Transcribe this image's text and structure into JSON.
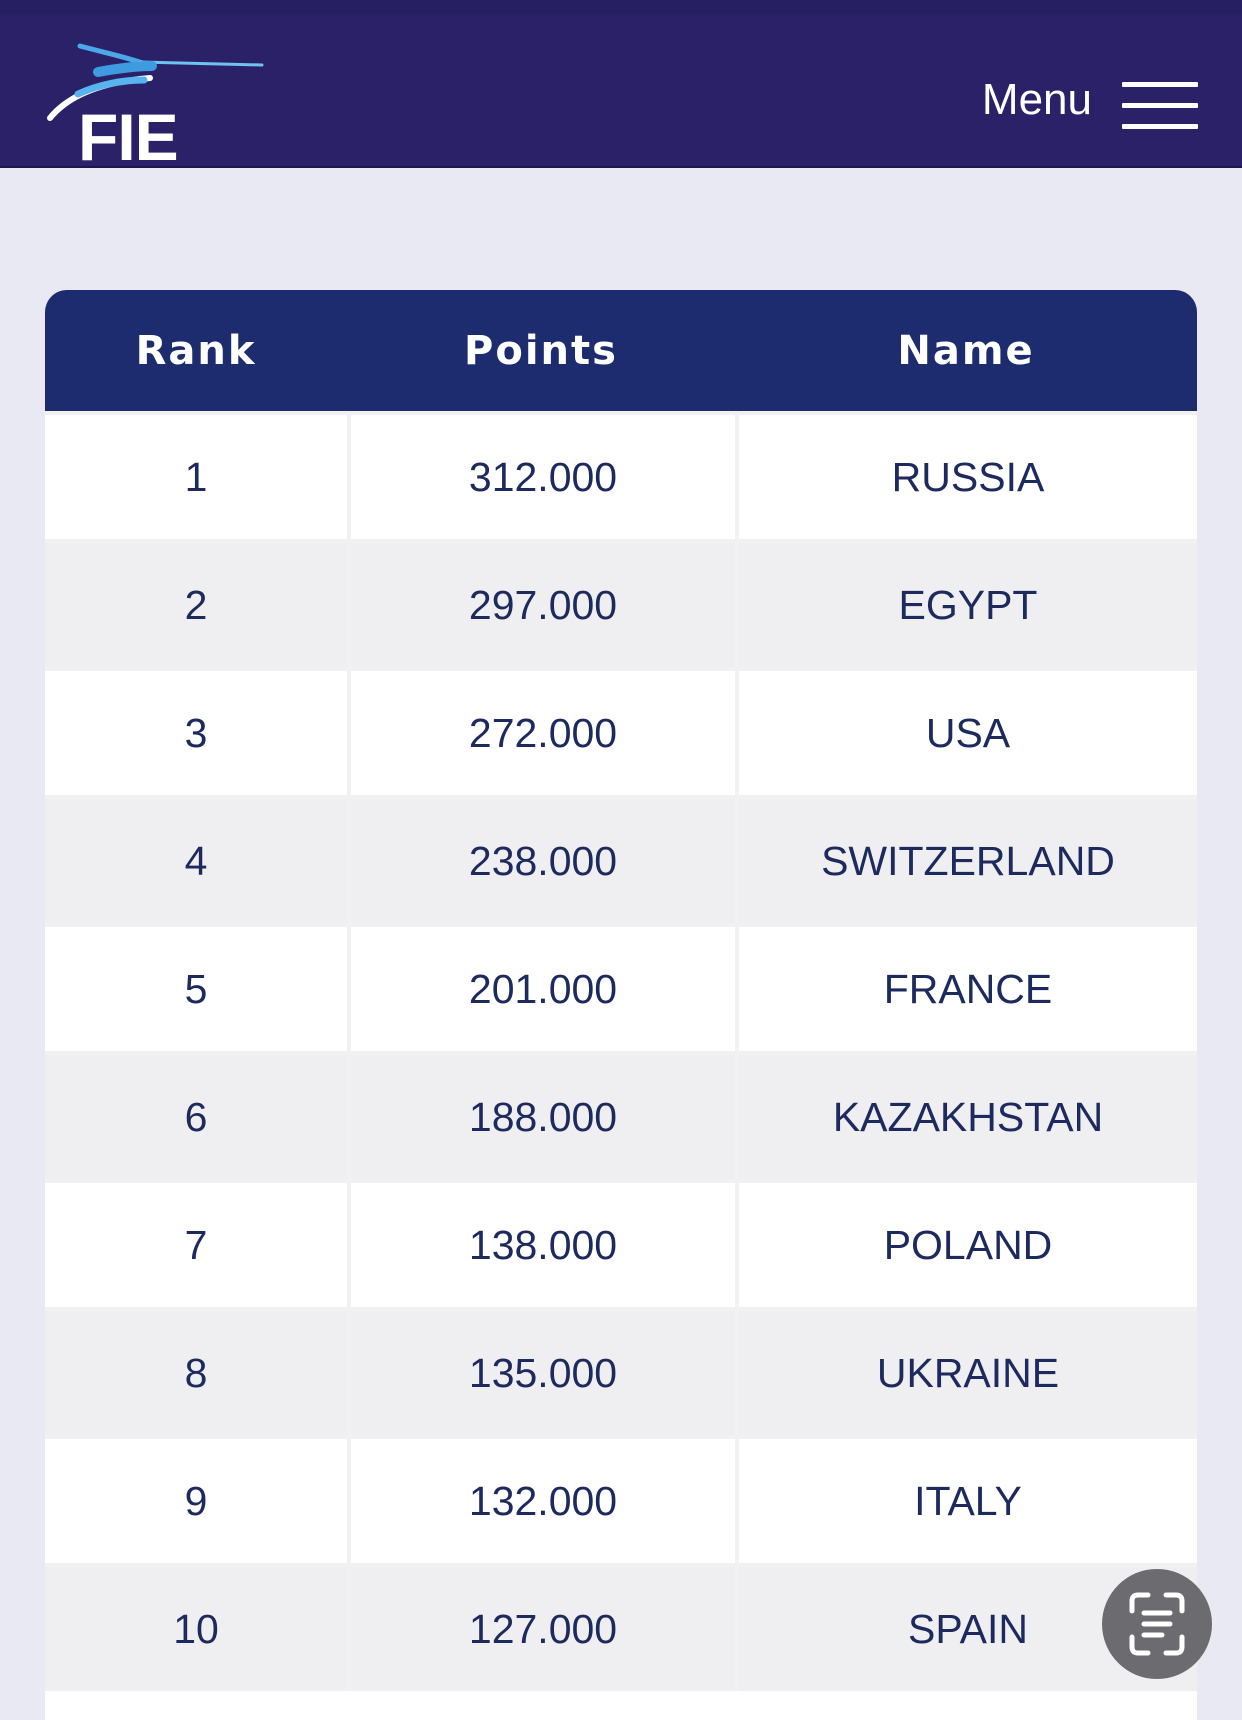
{
  "header": {
    "logo_text": "FIE",
    "menu_label": "Menu",
    "menu_icon": "hamburger-menu-icon"
  },
  "table": {
    "columns": [
      "Rank",
      "Points",
      "Name"
    ],
    "rows": [
      {
        "rank": "1",
        "points": "312.000",
        "name": "RUSSIA"
      },
      {
        "rank": "2",
        "points": "297.000",
        "name": "EGYPT"
      },
      {
        "rank": "3",
        "points": "272.000",
        "name": "USA"
      },
      {
        "rank": "4",
        "points": "238.000",
        "name": "SWITZERLAND"
      },
      {
        "rank": "5",
        "points": "201.000",
        "name": "FRANCE"
      },
      {
        "rank": "6",
        "points": "188.000",
        "name": "KAZAKHSTAN"
      },
      {
        "rank": "7",
        "points": "138.000",
        "name": "POLAND"
      },
      {
        "rank": "8",
        "points": "135.000",
        "name": "UKRAINE"
      },
      {
        "rank": "9",
        "points": "132.000",
        "name": "ITALY"
      },
      {
        "rank": "10",
        "points": "127.000",
        "name": "SPAIN"
      }
    ]
  },
  "overlay": {
    "lens_icon": "scan-text-icon"
  },
  "colors": {
    "header_bg": "#2b2168",
    "table_header_bg": "#1c2c6e",
    "text": "#1c2a5e",
    "page_bg": "#e9e9f3",
    "row_alt_bg": "#efeff1"
  }
}
